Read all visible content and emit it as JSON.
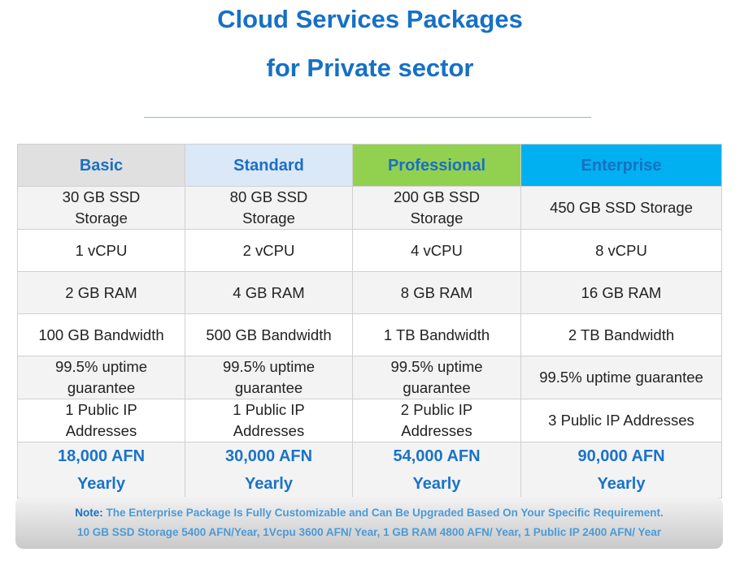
{
  "header": {
    "title_line1": "Cloud Services Packages",
    "title_line2": "for Private sector"
  },
  "table": {
    "columns": [
      "Basic",
      "Standard",
      "Professional",
      "Enterprise"
    ],
    "rows": [
      [
        "30 GB SSD Storage",
        "80 GB SSD Storage",
        "200 GB SSD Storage",
        "450 GB SSD Storage"
      ],
      [
        "1 vCPU",
        "2 vCPU",
        "4 vCPU",
        "8 vCPU"
      ],
      [
        "2 GB RAM",
        "4 GB RAM",
        "8 GB RAM",
        "16 GB RAM"
      ],
      [
        "100 GB Bandwidth",
        "500 GB Bandwidth",
        "1 TB Bandwidth",
        "2 TB Bandwidth"
      ],
      [
        "99.5% uptime guarantee",
        "99.5% uptime guarantee",
        "99.5% uptime guarantee",
        "99.5% uptime guarantee"
      ],
      [
        "1 Public IP Addresses",
        "1 Public IP Addresses",
        "2 Public IP Addresses",
        "3 Public IP Addresses"
      ]
    ],
    "prices": [
      {
        "amount": "18,000 AFN",
        "period": "Yearly"
      },
      {
        "amount": "30,000 AFN",
        "period": "Yearly"
      },
      {
        "amount": "54,000 AFN",
        "period": "Yearly"
      },
      {
        "amount": "90,000 AFN",
        "period": "Yearly"
      }
    ]
  },
  "note": {
    "label": "Note:",
    "line1": "The Enterprise Package Is Fully Customizable and Can Be Upgraded Based On Your Specific Requirement.",
    "line2": "10 GB SSD Storage 5400 AFN/Year, 1Vcpu 3600 AFN/ Year,  1 GB RAM 4800 AFN/ Year,  1 Public IP 2400 AFN/ Year"
  }
}
